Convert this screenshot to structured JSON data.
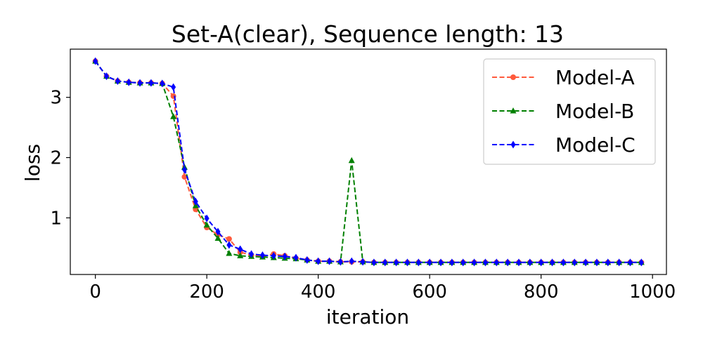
{
  "chart_data": {
    "type": "line",
    "title": "Set-A(clear), Sequence length: 13",
    "xlabel": "iteration",
    "ylabel": "loss",
    "xlim": [
      -45,
      1025
    ],
    "ylim": [
      0.06,
      3.8
    ],
    "xticks": [
      0,
      200,
      400,
      600,
      800,
      1000
    ],
    "yticks": [
      1,
      2,
      3
    ],
    "grid": false,
    "legend_position": "top-right",
    "series": [
      {
        "name": "Model-A",
        "color": "#ff5a3c",
        "marker": "circle",
        "x": [
          0,
          20,
          40,
          60,
          80,
          100,
          120,
          140,
          160,
          180,
          200,
          220,
          240,
          260,
          280,
          300,
          320,
          340,
          360,
          380,
          400,
          420,
          440,
          460,
          480,
          500,
          520,
          540,
          560,
          580,
          600,
          620,
          640,
          660,
          680,
          700,
          720,
          740,
          760,
          780,
          800,
          820,
          840,
          860,
          880,
          900,
          920,
          940,
          960,
          980
        ],
        "y": [
          3.6,
          3.35,
          3.27,
          3.25,
          3.24,
          3.24,
          3.23,
          3.02,
          1.68,
          1.14,
          0.84,
          0.72,
          0.65,
          0.43,
          0.38,
          0.36,
          0.4,
          0.37,
          0.33,
          0.3,
          0.28,
          0.28,
          0.27,
          0.27,
          0.27,
          0.26,
          0.26,
          0.26,
          0.26,
          0.26,
          0.26,
          0.26,
          0.26,
          0.26,
          0.26,
          0.26,
          0.26,
          0.26,
          0.26,
          0.26,
          0.26,
          0.26,
          0.26,
          0.26,
          0.26,
          0.26,
          0.26,
          0.26,
          0.26,
          0.26
        ]
      },
      {
        "name": "Model-B",
        "color": "#008000",
        "marker": "triangle",
        "x": [
          0,
          20,
          40,
          60,
          80,
          100,
          120,
          140,
          160,
          180,
          200,
          220,
          240,
          260,
          280,
          300,
          320,
          340,
          360,
          380,
          400,
          420,
          440,
          460,
          480,
          500,
          520,
          540,
          560,
          580,
          600,
          620,
          640,
          660,
          680,
          700,
          720,
          740,
          760,
          780,
          800,
          820,
          840,
          860,
          880,
          900,
          920,
          940,
          960,
          980
        ],
        "y": [
          3.6,
          3.35,
          3.27,
          3.25,
          3.24,
          3.24,
          3.23,
          2.68,
          1.84,
          1.2,
          0.88,
          0.66,
          0.41,
          0.37,
          0.36,
          0.35,
          0.34,
          0.33,
          0.32,
          0.3,
          0.28,
          0.28,
          0.27,
          1.95,
          0.27,
          0.26,
          0.26,
          0.26,
          0.26,
          0.26,
          0.26,
          0.26,
          0.26,
          0.26,
          0.26,
          0.26,
          0.26,
          0.26,
          0.26,
          0.26,
          0.26,
          0.26,
          0.26,
          0.26,
          0.26,
          0.26,
          0.26,
          0.26,
          0.26,
          0.26
        ]
      },
      {
        "name": "Model-C",
        "color": "#0000ff",
        "marker": "diamond",
        "x": [
          0,
          20,
          40,
          60,
          80,
          100,
          120,
          140,
          160,
          180,
          200,
          220,
          240,
          260,
          280,
          300,
          320,
          340,
          360,
          380,
          400,
          420,
          440,
          460,
          480,
          500,
          520,
          540,
          560,
          580,
          600,
          620,
          640,
          660,
          680,
          700,
          720,
          740,
          760,
          780,
          800,
          820,
          840,
          860,
          880,
          900,
          920,
          940,
          960,
          980
        ],
        "y": [
          3.6,
          3.35,
          3.27,
          3.25,
          3.24,
          3.24,
          3.23,
          3.17,
          1.8,
          1.27,
          0.99,
          0.77,
          0.55,
          0.48,
          0.4,
          0.38,
          0.37,
          0.36,
          0.34,
          0.3,
          0.28,
          0.28,
          0.27,
          0.28,
          0.27,
          0.26,
          0.26,
          0.26,
          0.26,
          0.26,
          0.26,
          0.26,
          0.26,
          0.26,
          0.26,
          0.26,
          0.26,
          0.26,
          0.26,
          0.26,
          0.26,
          0.26,
          0.26,
          0.26,
          0.26,
          0.26,
          0.26,
          0.26,
          0.26,
          0.26
        ]
      }
    ]
  }
}
